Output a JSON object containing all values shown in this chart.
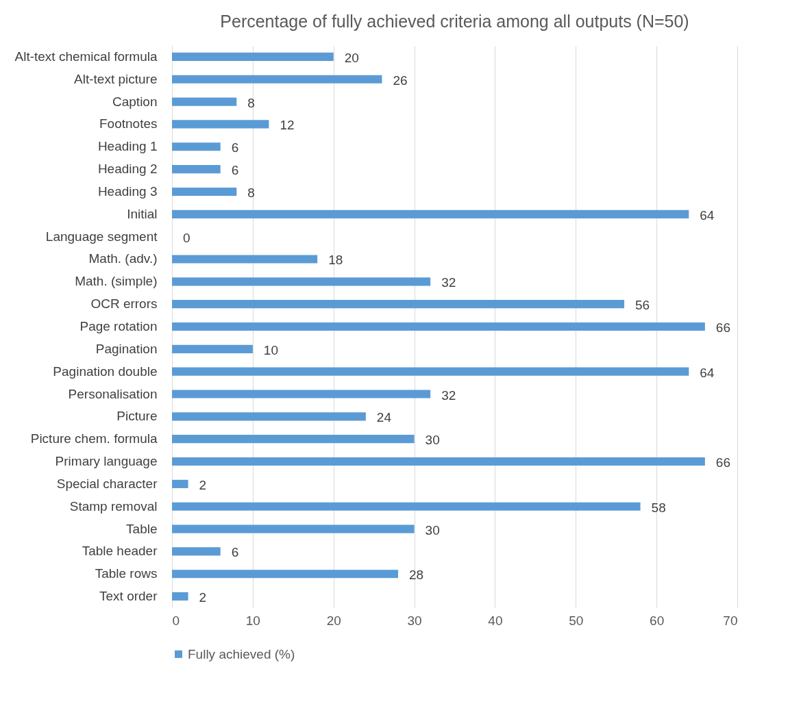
{
  "chart_data": {
    "type": "bar",
    "orientation": "horizontal",
    "title": "Percentage of fully achieved criteria among all outputs (N=50)",
    "categories": [
      "Alt-text chemical formula",
      "Alt-text picture",
      "Caption",
      "Footnotes",
      "Heading 1",
      "Heading 2",
      "Heading 3",
      "Initial",
      "Language segment",
      "Math. (adv.)",
      "Math. (simple)",
      "OCR errors",
      "Page rotation",
      "Pagination",
      "Pagination double",
      "Personalisation",
      "Picture",
      "Picture chem. formula",
      "Primary language",
      "Special character",
      "Stamp removal",
      "Table",
      "Table header",
      "Table rows",
      "Text order"
    ],
    "series": [
      {
        "name": "Fully achieved (%)",
        "color": "#5b9bd5",
        "values": [
          20,
          26,
          8,
          12,
          6,
          6,
          8,
          64,
          0,
          18,
          32,
          56,
          66,
          10,
          64,
          32,
          24,
          30,
          66,
          2,
          58,
          30,
          6,
          28,
          2
        ]
      }
    ],
    "xlim": [
      0,
      70
    ],
    "xticks": [
      0,
      10,
      20,
      30,
      40,
      50,
      60,
      70
    ],
    "grid": "x",
    "data_labels": true,
    "legend": "bottom"
  }
}
